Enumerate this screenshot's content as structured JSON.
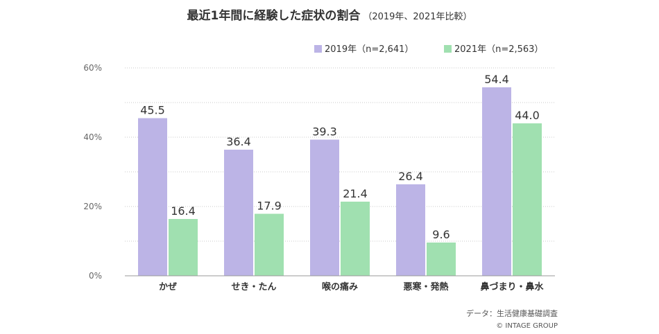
{
  "title": "最近1年間に経験した症状の割合",
  "subtitle": "（2019年、2021年比較）",
  "source": "データ：生活健康基礎調査",
  "copyright": "© INTAGE GROUP",
  "colors": {
    "series_2019": "#bcb4e6",
    "series_2021": "#a0e0b0",
    "grid": "#c8c8c8",
    "axis": "#999999"
  },
  "chart_data": {
    "type": "bar",
    "categories": [
      "かぜ",
      "せき・たん",
      "喉の痛み",
      "悪寒・発熱",
      "鼻づまり・鼻水"
    ],
    "series": [
      {
        "name": "2019年（n=2,641）",
        "values": [
          45.5,
          36.4,
          39.3,
          26.4,
          54.4
        ]
      },
      {
        "name": "2021年（n=2,563）",
        "values": [
          16.4,
          17.9,
          21.4,
          9.6,
          44.0
        ]
      }
    ],
    "ylim": [
      0,
      60
    ],
    "yticks": [
      "0%",
      "20%",
      "40%",
      "60%"
    ],
    "grid": true,
    "legend": "top-right",
    "xlabel": "",
    "ylabel": ""
  }
}
